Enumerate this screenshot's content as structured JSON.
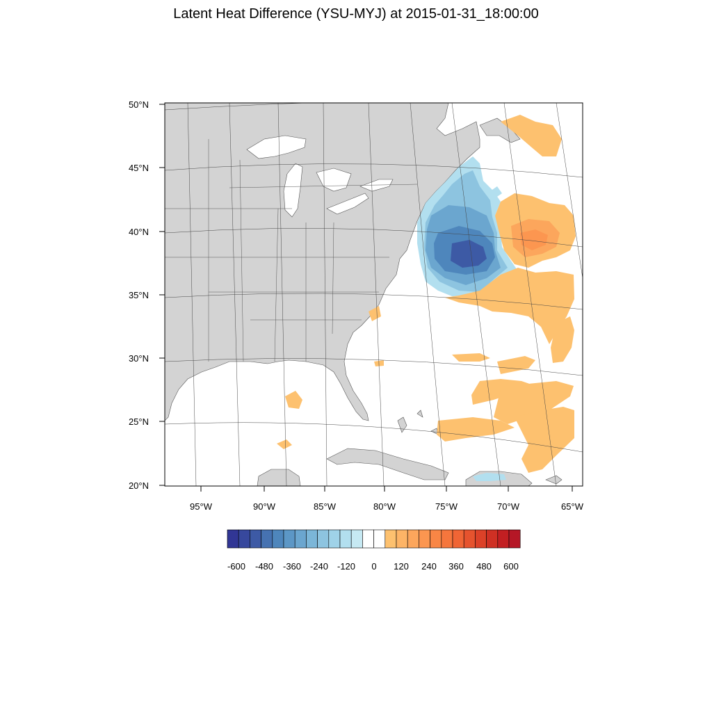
{
  "title": "Latent Heat Difference (YSU-MYJ) at 2015-01-31_18:00:00",
  "map": {
    "lat_labels": [
      "50°N",
      "45°N",
      "40°N",
      "35°N",
      "30°N",
      "25°N",
      "20°N"
    ],
    "lon_labels": [
      "95°W",
      "90°W",
      "85°W",
      "80°W",
      "75°W",
      "70°W",
      "65°W"
    ],
    "land_color": "#d3d3d3",
    "water_color": "#ffffff"
  },
  "colorbar": {
    "tick_labels": [
      "-600",
      "-480",
      "-360",
      "-240",
      "-120",
      "0",
      "120",
      "240",
      "360",
      "480",
      "600"
    ],
    "colors": [
      "#313695",
      "#37489d",
      "#3d5aa5",
      "#4672b1",
      "#4e86bc",
      "#5c97c6",
      "#6ba6cf",
      "#7bb6d8",
      "#8dc4e0",
      "#9fd2e8",
      "#b2dfef",
      "#c6e9f3",
      "#ffffff",
      "#ffffff",
      "#fdc16f",
      "#fdb466",
      "#fca65c",
      "#fc9650",
      "#f98645",
      "#f5763d",
      "#f06535",
      "#e6532e",
      "#dc4128",
      "#cf3024",
      "#c21f22",
      "#b51726"
    ]
  }
}
